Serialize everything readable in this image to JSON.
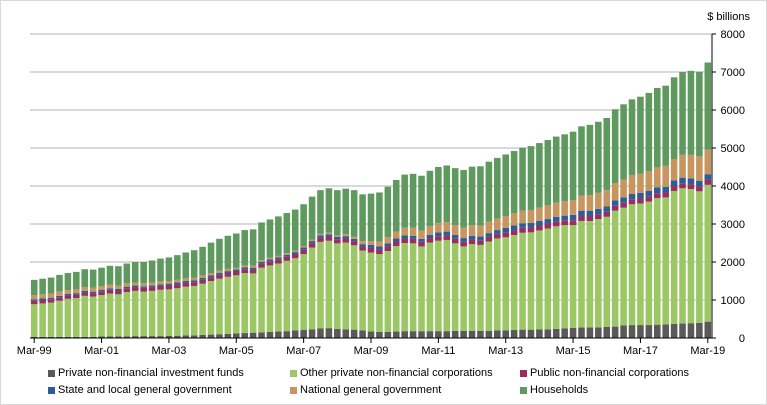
{
  "chart_data": {
    "type": "bar",
    "stacked": true,
    "unit_label": "$ billions",
    "y_axis_side": "right",
    "ylim": [
      0,
      8000
    ],
    "yticks": [
      0,
      1000,
      2000,
      3000,
      4000,
      5000,
      6000,
      7000,
      8000
    ],
    "grid": true,
    "legend_placement": "bottom",
    "x_tick_labels": [
      "Mar-99",
      "Mar-01",
      "Mar-03",
      "Mar-05",
      "Mar-07",
      "Mar-09",
      "Mar-11",
      "Mar-13",
      "Mar-15",
      "Mar-17",
      "Mar-19"
    ],
    "x_start": "Mar-99",
    "x_end": "Mar-19",
    "frequency": "quarterly",
    "series": [
      {
        "name": "Private non-financial investment funds",
        "color": "#595959",
        "values": [
          30,
          30,
          30,
          30,
          30,
          30,
          30,
          30,
          40,
          40,
          40,
          40,
          50,
          50,
          50,
          50,
          60,
          60,
          70,
          70,
          80,
          90,
          100,
          110,
          120,
          130,
          140,
          150,
          160,
          170,
          180,
          200,
          210,
          230,
          250,
          260,
          240,
          230,
          220,
          200,
          170,
          160,
          160,
          170,
          180,
          180,
          180,
          180,
          180,
          180,
          190,
          190,
          190,
          190,
          190,
          200,
          200,
          210,
          220,
          220,
          230,
          230,
          240,
          250,
          270,
          280,
          280,
          280,
          290,
          300,
          330,
          340,
          340,
          340,
          350,
          360,
          370,
          380,
          390,
          400,
          430
        ]
      },
      {
        "name": "Other private non-financial corporations",
        "color": "#9BC865",
        "values": [
          860,
          880,
          900,
          950,
          1000,
          1020,
          1080,
          1060,
          1090,
          1130,
          1110,
          1170,
          1190,
          1170,
          1190,
          1220,
          1220,
          1250,
          1280,
          1300,
          1350,
          1410,
          1460,
          1500,
          1530,
          1580,
          1560,
          1700,
          1750,
          1790,
          1850,
          1900,
          2000,
          2150,
          2280,
          2300,
          2250,
          2280,
          2220,
          2100,
          2080,
          2050,
          2130,
          2250,
          2320,
          2310,
          2230,
          2330,
          2380,
          2400,
          2300,
          2220,
          2280,
          2260,
          2350,
          2420,
          2450,
          2500,
          2550,
          2560,
          2600,
          2650,
          2700,
          2720,
          2700,
          2800,
          2800,
          2850,
          2900,
          3050,
          3100,
          3180,
          3200,
          3250,
          3330,
          3340,
          3500,
          3560,
          3530,
          3460,
          3600
        ]
      },
      {
        "name": "Public non-financial corporations",
        "color": "#9B2D5F",
        "values": [
          90,
          90,
          90,
          90,
          90,
          90,
          90,
          90,
          100,
          100,
          100,
          100,
          100,
          100,
          100,
          100,
          100,
          100,
          100,
          100,
          100,
          100,
          100,
          100,
          100,
          100,
          100,
          100,
          110,
          110,
          110,
          110,
          110,
          110,
          110,
          110,
          110,
          110,
          110,
          110,
          120,
          120,
          120,
          120,
          120,
          120,
          120,
          120,
          120,
          120,
          120,
          120,
          120,
          120,
          120,
          120,
          130,
          130,
          130,
          130,
          130,
          130,
          130,
          130,
          130,
          130,
          130,
          130,
          130,
          130,
          130,
          130,
          130,
          130,
          130,
          130,
          130,
          130,
          130,
          130,
          130
        ]
      },
      {
        "name": "State and local general government",
        "color": "#2E5C99",
        "values": [
          40,
          40,
          40,
          40,
          40,
          40,
          40,
          40,
          40,
          40,
          40,
          40,
          40,
          40,
          40,
          40,
          50,
          50,
          50,
          50,
          50,
          50,
          50,
          50,
          50,
          50,
          50,
          50,
          50,
          50,
          50,
          50,
          60,
          60,
          60,
          60,
          60,
          60,
          60,
          60,
          80,
          80,
          80,
          80,
          80,
          80,
          80,
          80,
          100,
          100,
          100,
          100,
          100,
          100,
          100,
          100,
          120,
          120,
          120,
          120,
          120,
          120,
          120,
          120,
          140,
          140,
          140,
          140,
          140,
          140,
          140,
          140,
          150,
          150,
          150,
          150,
          150,
          150,
          150,
          150,
          150
        ]
      },
      {
        "name": "National general government",
        "color": "#C8955F",
        "values": [
          110,
          110,
          110,
          110,
          100,
          100,
          100,
          100,
          90,
          90,
          90,
          90,
          80,
          80,
          80,
          80,
          70,
          70,
          70,
          70,
          60,
          60,
          60,
          60,
          50,
          50,
          50,
          50,
          40,
          40,
          40,
          40,
          40,
          40,
          40,
          40,
          40,
          50,
          60,
          80,
          100,
          130,
          160,
          180,
          200,
          210,
          220,
          230,
          240,
          250,
          260,
          270,
          280,
          290,
          300,
          300,
          310,
          320,
          330,
          340,
          350,
          360,
          370,
          380,
          390,
          400,
          410,
          420,
          430,
          450,
          470,
          490,
          500,
          520,
          530,
          550,
          560,
          600,
          620,
          640,
          650
        ]
      },
      {
        "name": "Households",
        "color": "#5E9A5E",
        "values": [
          400,
          410,
          420,
          440,
          450,
          460,
          470,
          480,
          490,
          500,
          510,
          520,
          540,
          560,
          580,
          600,
          620,
          650,
          680,
          720,
          760,
          800,
          840,
          870,
          900,
          930,
          960,
          990,
          1010,
          1040,
          1060,
          1080,
          1100,
          1130,
          1150,
          1170,
          1190,
          1200,
          1220,
          1230,
          1250,
          1290,
          1330,
          1360,
          1400,
          1420,
          1440,
          1460,
          1480,
          1490,
          1500,
          1520,
          1540,
          1560,
          1580,
          1600,
          1620,
          1640,
          1660,
          1680,
          1700,
          1720,
          1740,
          1760,
          1800,
          1820,
          1850,
          1870,
          1900,
          1950,
          1980,
          2000,
          2030,
          2060,
          2090,
          2110,
          2150,
          2180,
          2210,
          2230,
          2290
        ]
      }
    ]
  }
}
